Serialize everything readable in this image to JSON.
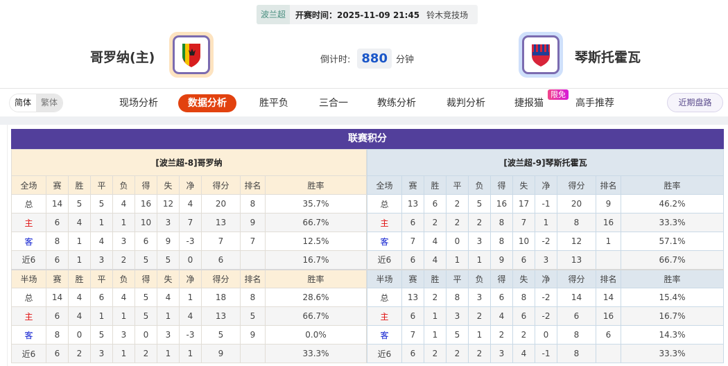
{
  "match": {
    "league": "波兰超",
    "time": "开赛时间：2025-11-09 21:45",
    "venue": "铃木竞技场"
  },
  "home": {
    "name": "哥罗纳(主)",
    "logo_colors": [
      "#f5c400",
      "#d81e1e",
      "#1a8a2e"
    ]
  },
  "away": {
    "name": "琴斯托霍瓦",
    "logo_colors": [
      "#1e3f96",
      "#d8243a"
    ]
  },
  "countdown": {
    "label": "倒计时:",
    "value": "880",
    "unit": "分钟"
  },
  "nav": {
    "lang": [
      "简体",
      "繁体"
    ],
    "items": [
      "现场分析",
      "数据分析",
      "胜平负",
      "三合一",
      "教练分析",
      "裁判分析",
      "捷报猫",
      "高手推荐"
    ],
    "active": 1,
    "badge": "限免",
    "recent": "近期盘路",
    "accent": "#e2420f"
  },
  "standings": {
    "title": "联赛积分",
    "columns_full": [
      "全场",
      "赛",
      "胜",
      "平",
      "负",
      "得",
      "失",
      "净",
      "得分",
      "排名",
      "胜率"
    ],
    "columns_half": [
      "半场",
      "赛",
      "胜",
      "平",
      "负",
      "得",
      "失",
      "净",
      "得分",
      "排名",
      "胜率"
    ],
    "home": {
      "header": "[波兰超-8]哥罗纳",
      "full": [
        [
          "总",
          "14",
          "5",
          "5",
          "4",
          "16",
          "12",
          "4",
          "20",
          "8",
          "35.7%"
        ],
        [
          "主",
          "6",
          "4",
          "1",
          "1",
          "10",
          "3",
          "7",
          "13",
          "9",
          "66.7%"
        ],
        [
          "客",
          "8",
          "1",
          "4",
          "3",
          "6",
          "9",
          "-3",
          "7",
          "7",
          "12.5%"
        ],
        [
          "近6",
          "6",
          "1",
          "3",
          "2",
          "5",
          "5",
          "0",
          "6",
          "",
          "16.7%"
        ]
      ],
      "half": [
        [
          "总",
          "14",
          "4",
          "6",
          "4",
          "5",
          "4",
          "1",
          "18",
          "8",
          "28.6%"
        ],
        [
          "主",
          "6",
          "4",
          "1",
          "1",
          "5",
          "1",
          "4",
          "13",
          "5",
          "66.7%"
        ],
        [
          "客",
          "8",
          "0",
          "5",
          "3",
          "0",
          "3",
          "-3",
          "5",
          "9",
          "0.0%"
        ],
        [
          "近6",
          "6",
          "2",
          "3",
          "1",
          "2",
          "1",
          "1",
          "9",
          "",
          "33.3%"
        ]
      ]
    },
    "away": {
      "header": "[波兰超-9]琴斯托霍瓦",
      "full": [
        [
          "总",
          "13",
          "6",
          "2",
          "5",
          "16",
          "17",
          "-1",
          "20",
          "9",
          "46.2%"
        ],
        [
          "主",
          "6",
          "2",
          "2",
          "2",
          "8",
          "7",
          "1",
          "8",
          "16",
          "33.3%"
        ],
        [
          "客",
          "7",
          "4",
          "0",
          "3",
          "8",
          "10",
          "-2",
          "12",
          "1",
          "57.1%"
        ],
        [
          "近6",
          "6",
          "4",
          "1",
          "1",
          "9",
          "6",
          "3",
          "13",
          "",
          "66.7%"
        ]
      ],
      "half": [
        [
          "总",
          "13",
          "2",
          "8",
          "3",
          "6",
          "8",
          "-2",
          "14",
          "14",
          "15.4%"
        ],
        [
          "主",
          "6",
          "1",
          "3",
          "2",
          "4",
          "6",
          "-2",
          "6",
          "16",
          "16.7%"
        ],
        [
          "客",
          "7",
          "1",
          "5",
          "1",
          "2",
          "2",
          "0",
          "8",
          "6",
          "14.3%"
        ],
        [
          "近6",
          "6",
          "2",
          "2",
          "2",
          "3",
          "4",
          "-1",
          "8",
          "",
          "33.3%"
        ]
      ]
    }
  }
}
